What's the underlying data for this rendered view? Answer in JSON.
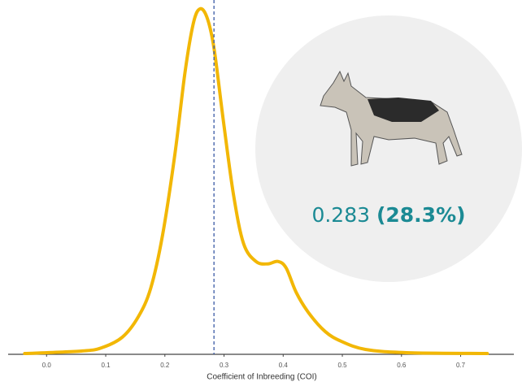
{
  "chart_data": {
    "type": "line",
    "x_label": "Coefficient of Inbreeding (COI)",
    "x": [
      -0.037,
      0.059,
      0.093,
      0.128,
      0.155,
      0.176,
      0.196,
      0.217,
      0.234,
      0.248,
      0.259,
      0.271,
      0.283,
      0.299,
      0.316,
      0.333,
      0.354,
      0.374,
      0.391,
      0.405,
      0.422,
      0.443,
      0.471,
      0.498,
      0.539,
      0.608,
      0.745
    ],
    "series": [
      {
        "color": "#f2b705",
        "values": [
          0.02,
          0.08,
          0.16,
          0.42,
          0.92,
          1.62,
          2.92,
          4.92,
          6.92,
          8.12,
          8.48,
          8.28,
          7.52,
          5.72,
          3.92,
          2.72,
          2.28,
          2.22,
          2.28,
          2.12,
          1.52,
          1.02,
          0.56,
          0.32,
          0.12,
          0.04,
          0.02
        ]
      }
    ],
    "xlim": [
      -0.065,
      0.79
    ],
    "ylim": [
      0,
      8.5
    ],
    "xticks": [
      {
        "value": 0,
        "label": "0.0"
      },
      0.1,
      0.2,
      0.3,
      0.4,
      0.5,
      0.6,
      0.7
    ],
    "annotation_value": 0.283,
    "annotation_percent": "(28.3%)",
    "annotation_color": "#3b5ba5"
  }
}
